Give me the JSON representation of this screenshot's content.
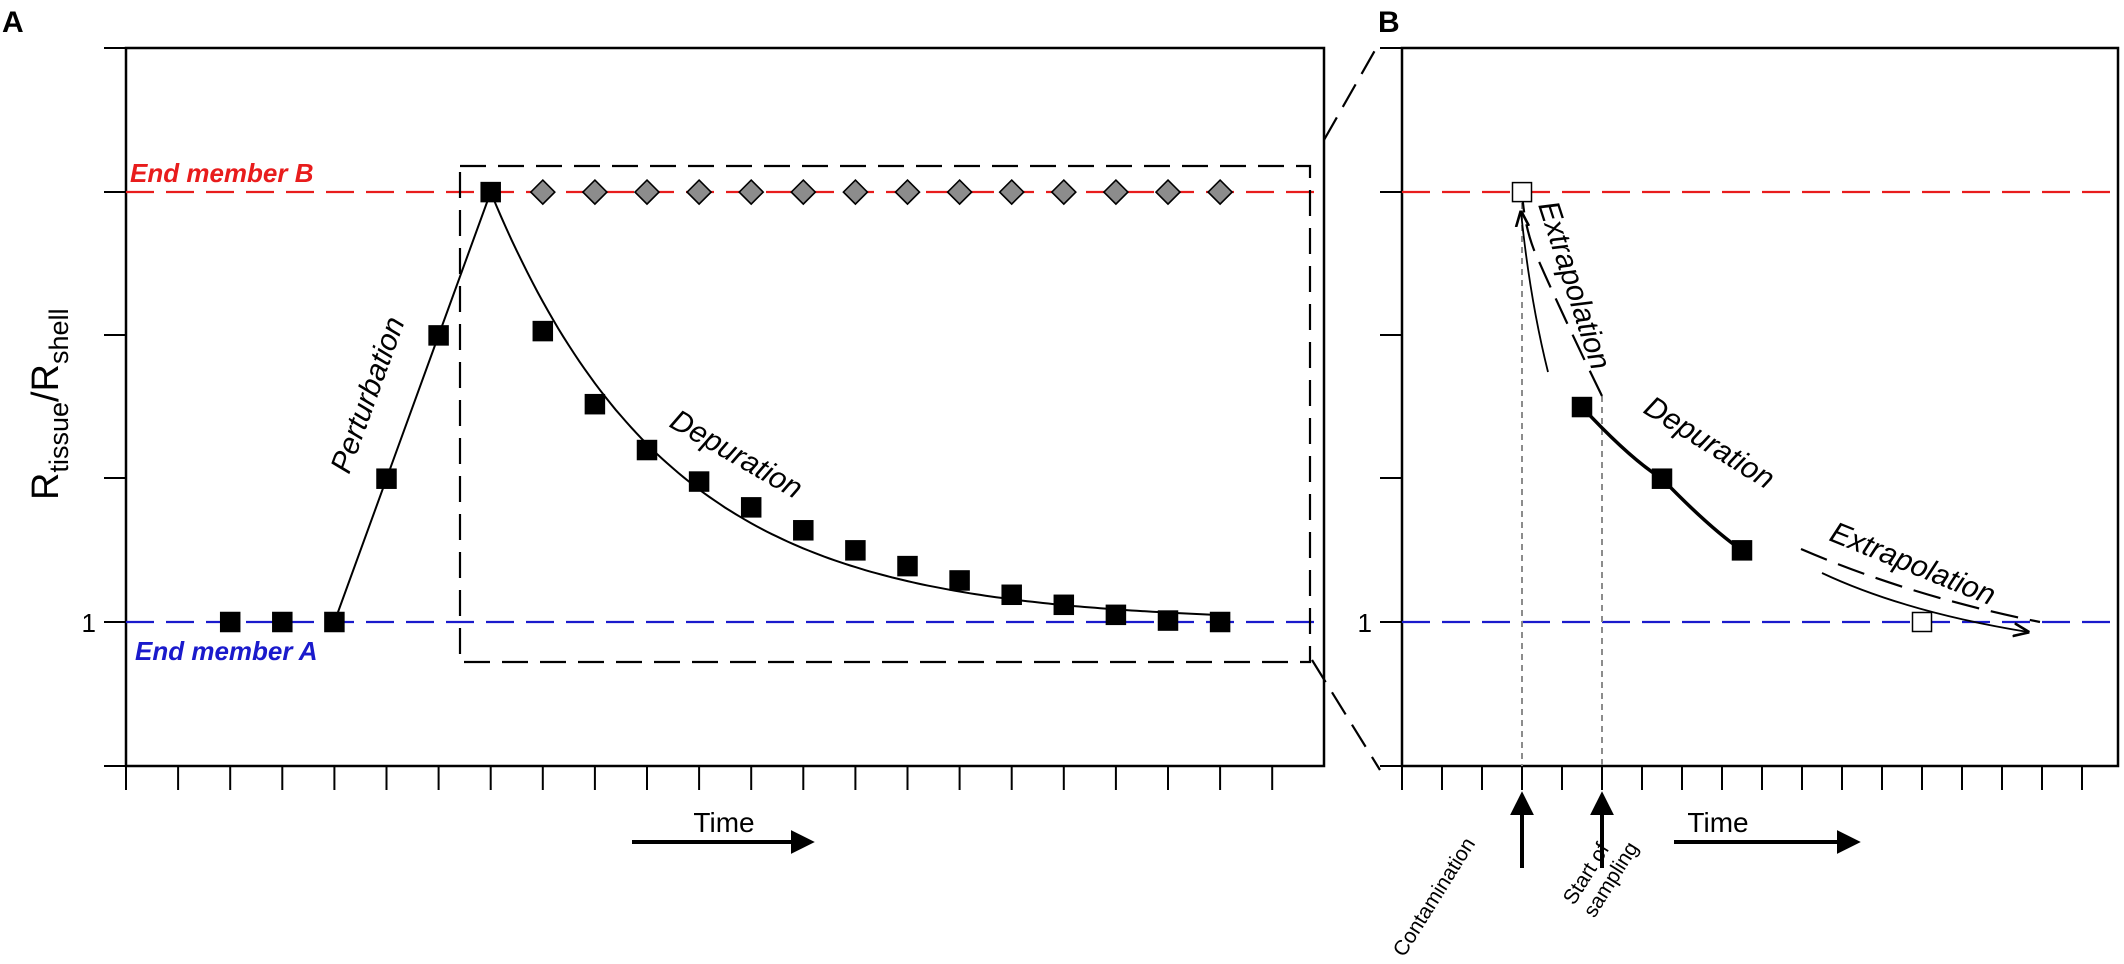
{
  "colors": {
    "end_member_a": "#1a1acc",
    "end_member_b": "#e81c1c",
    "marker_filled": "#000000",
    "marker_diamond": "#8c8c8c",
    "marker_open": "#ffffff",
    "sampling_guide": "#8c8c8c"
  },
  "chart_data": [
    {
      "panel": "A",
      "type": "line",
      "ylabel": "R",
      "ylabel_sub1": "tissue",
      "ylabel_sep": "/R",
      "ylabel_sub2": "shell",
      "xlabel": "Time",
      "y_tick_labels": [
        "1"
      ],
      "x_ticks": 23,
      "y_ticks": 6,
      "grid": false,
      "end_members": [
        {
          "name": "End member B",
          "level": "high",
          "color": "#e81c1c"
        },
        {
          "name": "End member A",
          "level": "low",
          "color": "#1a1acc"
        }
      ],
      "series": [
        {
          "marker": "square-filled",
          "x": [
            2,
            3,
            4,
            5,
            6,
            7
          ],
          "y": [
            1,
            1,
            1,
            2,
            3,
            4
          ]
        },
        {
          "marker": "square-filled",
          "x": [
            7,
            8,
            9,
            10,
            11,
            12,
            13,
            14,
            15,
            16,
            17,
            18,
            19,
            20,
            21
          ],
          "y": [
            4,
            3.03,
            2.52,
            2.2,
            1.98,
            1.8,
            1.64,
            1.5,
            1.39,
            1.29,
            1.19,
            1.12,
            1.05,
            1.01,
            1.0
          ]
        },
        {
          "marker": "diamond-gray",
          "x": [
            8,
            9,
            10,
            11,
            12,
            13,
            14,
            15,
            16,
            17,
            18,
            19,
            20,
            21
          ],
          "y": [
            4,
            4,
            4,
            4,
            4,
            4,
            4,
            4,
            4,
            4,
            4,
            4,
            4,
            4
          ]
        }
      ],
      "annotations": [
        "Perturbation",
        "Depuration"
      ]
    },
    {
      "panel": "B",
      "type": "line",
      "xlabel": "Time",
      "y_tick_labels": [
        "1"
      ],
      "x_ticks": 14,
      "y_ticks": 6,
      "grid": false,
      "series": [
        {
          "marker": "square-filled",
          "x": [
            4,
            6,
            8
          ],
          "y": [
            2.5,
            2.0,
            1.5
          ]
        },
        {
          "marker": "square-open",
          "x": [
            2.5,
            12.5
          ],
          "y": [
            4,
            1
          ]
        }
      ],
      "annotations": [
        "Extrapolation",
        "Depuration",
        "Extrapolation"
      ],
      "events": [
        "Contamination",
        "Start of\nsampling"
      ]
    }
  ],
  "panelA": {
    "letter": "A",
    "ylabel_main": "R",
    "ylabel_sub1": "tissue",
    "ylabel_sep": "/R",
    "ylabel_sub2": "shell",
    "ytick_one": "1",
    "end_member_b": "End member B",
    "end_member_a": "End member A",
    "perturbation": "Perturbation",
    "depuration": "Depuration",
    "time": "Time"
  },
  "panelB": {
    "letter": "B",
    "ytick_one": "1",
    "extrapolation_left": "Extrapolation",
    "depuration": "Depuration",
    "extrapolation_right": "Extrapolation",
    "contamination": "Contamination",
    "start_line1": "Start of",
    "start_line2": "sampling",
    "time": "Time"
  }
}
